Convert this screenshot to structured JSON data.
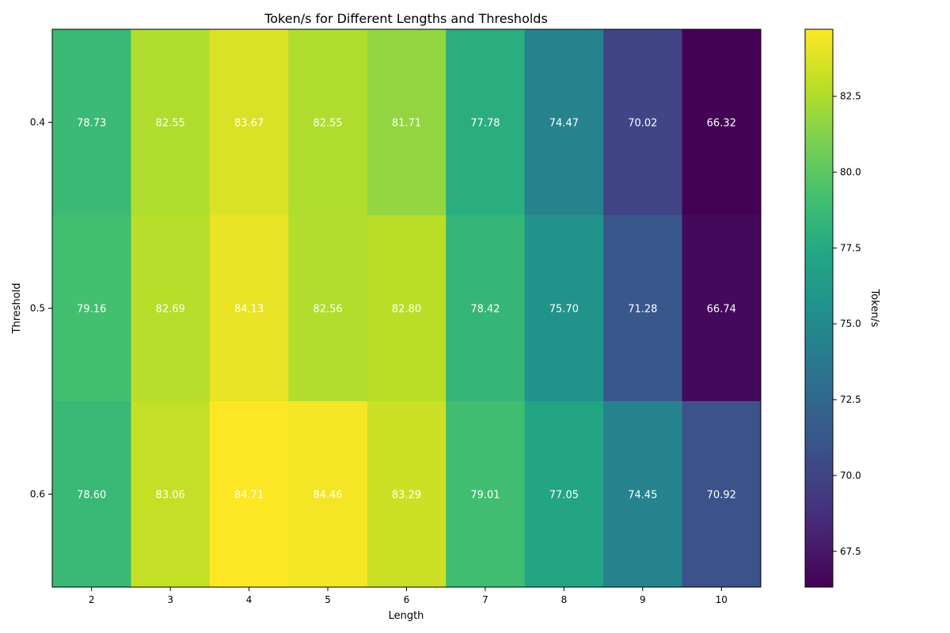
{
  "chart_data": {
    "type": "heatmap",
    "title": "Token/s for Different Lengths and Thresholds",
    "xlabel": "Length",
    "ylabel": "Threshold",
    "x": [
      "2",
      "3",
      "4",
      "5",
      "6",
      "7",
      "8",
      "9",
      "10"
    ],
    "y": [
      "0.4",
      "0.5",
      "0.6"
    ],
    "values": [
      [
        78.73,
        82.55,
        83.67,
        82.55,
        81.71,
        77.78,
        74.47,
        70.02,
        66.32
      ],
      [
        79.16,
        82.69,
        84.13,
        82.56,
        82.8,
        78.42,
        75.7,
        71.28,
        66.74
      ],
      [
        78.6,
        83.06,
        84.71,
        84.46,
        83.29,
        79.01,
        77.05,
        74.45,
        70.92
      ]
    ],
    "value_labels": [
      [
        "78.73",
        "82.55",
        "83.67",
        "82.55",
        "81.71",
        "77.78",
        "74.47",
        "70.02",
        "66.32"
      ],
      [
        "79.16",
        "82.69",
        "84.13",
        "82.56",
        "82.80",
        "78.42",
        "75.70",
        "71.28",
        "66.74"
      ],
      [
        "78.60",
        "83.06",
        "84.71",
        "84.46",
        "83.29",
        "79.01",
        "77.05",
        "74.45",
        "70.92"
      ]
    ],
    "colormap": "viridis",
    "color_range": [
      66.32,
      84.71
    ],
    "colorbar": {
      "label": "Token/s",
      "ticks": [
        67.5,
        70.0,
        72.5,
        75.0,
        77.5,
        80.0,
        82.5
      ],
      "tick_labels": [
        "67.5",
        "70.0",
        "72.5",
        "75.0",
        "77.5",
        "80.0",
        "82.5"
      ]
    },
    "grid": false
  }
}
